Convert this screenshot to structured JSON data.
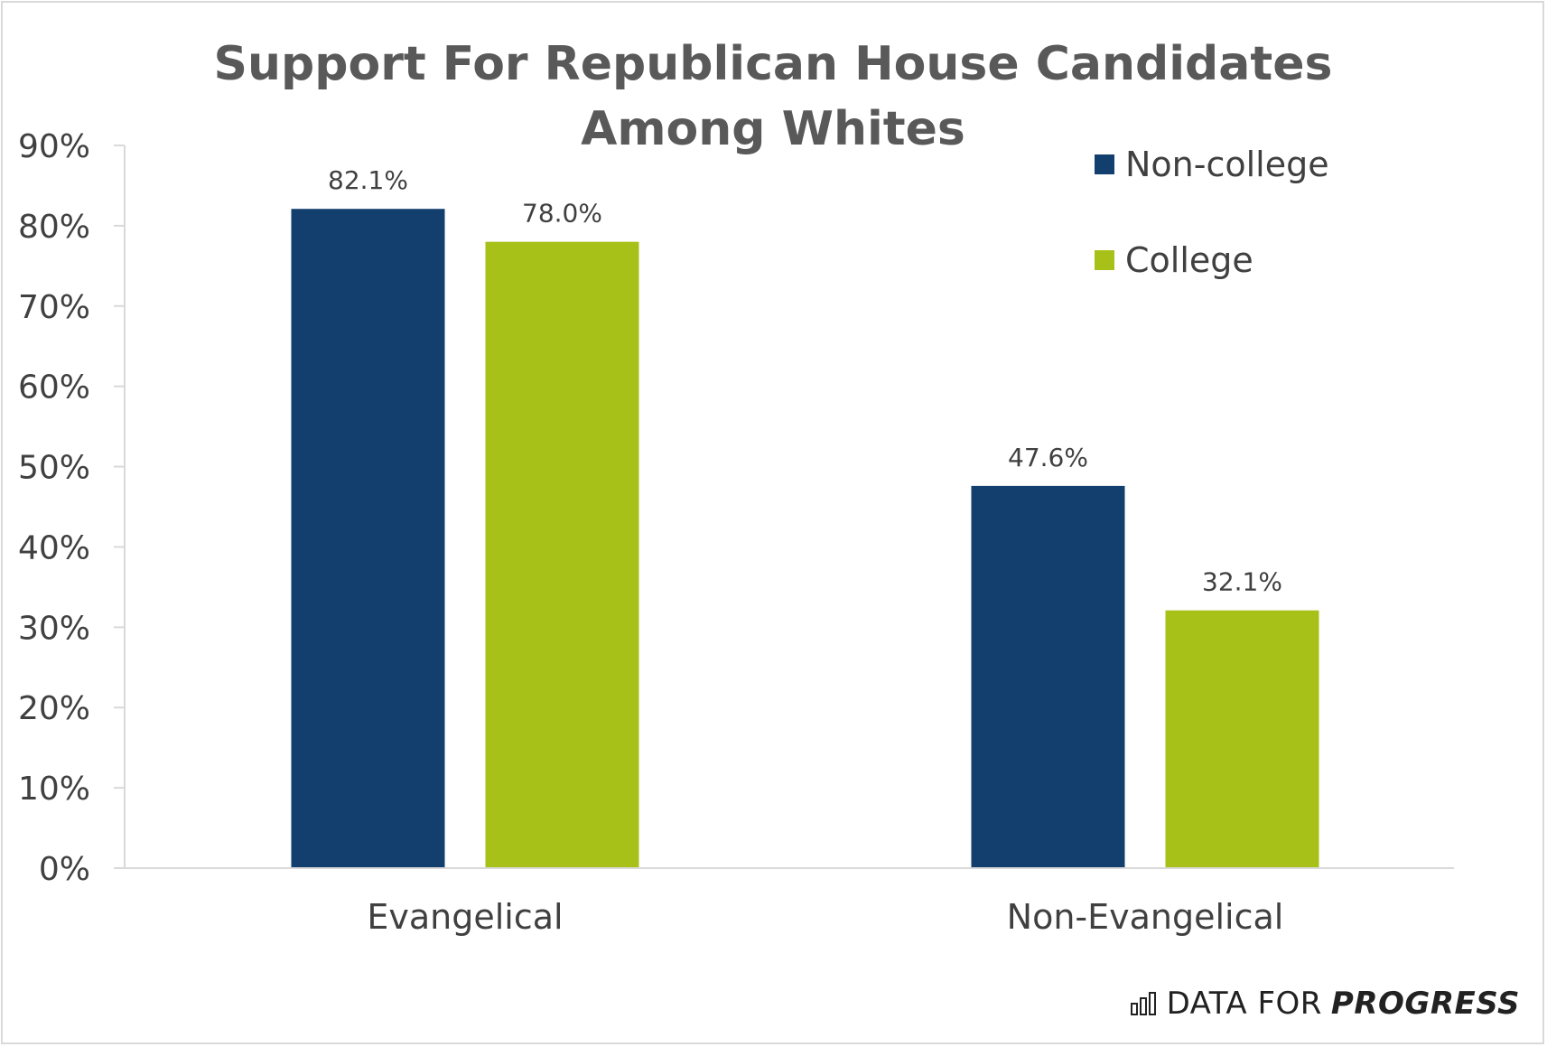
{
  "chart_data": {
    "type": "bar",
    "title": [
      "Support For Republican House Candidates",
      "Among Whites"
    ],
    "categories": [
      "Evangelical",
      "Non-Evangelical"
    ],
    "series": [
      {
        "name": "Non-college",
        "values": [
          82.1,
          47.6
        ],
        "labels": [
          "82.1%",
          "47.6%"
        ],
        "color": "#133f6e"
      },
      {
        "name": "College",
        "values": [
          78.0,
          32.1
        ],
        "labels": [
          "78.0%",
          "32.1%"
        ],
        "color": "#a8c118"
      }
    ],
    "ylim": [
      0,
      90
    ],
    "yticks": [
      0,
      10,
      20,
      30,
      40,
      50,
      60,
      70,
      80,
      90
    ],
    "ytick_labels": [
      "0%",
      "10%",
      "20%",
      "30%",
      "40%",
      "50%",
      "60%",
      "70%",
      "80%",
      "90%"
    ],
    "xlabel": "",
    "ylabel": "",
    "grid": false,
    "legend_position": "top-right"
  },
  "brand": {
    "icon": "bar-chart-icon",
    "prefix": "DATA FOR",
    "emphasis": "PROGRESS"
  }
}
